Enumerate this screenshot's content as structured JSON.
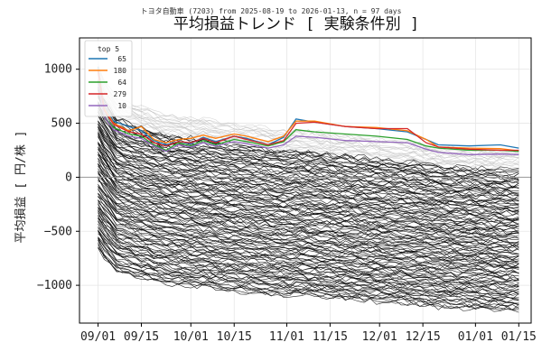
{
  "chart_data": {
    "type": "line",
    "subtitle": "トヨタ自動車 (7203) from 2025-08-19 to 2026-01-13, n = 97 days",
    "title": "平均損益トレンド [ 実験条件別 ]",
    "xlabel": "",
    "ylabel": "平均損益 [ 円/株 ]",
    "x_tick_labels": [
      "09/01",
      "09/15",
      "10/01",
      "10/15",
      "11/01",
      "11/15",
      "12/01",
      "12/15",
      "01/01",
      "01/15"
    ],
    "x_tick_days": [
      0,
      14,
      30,
      44,
      61,
      75,
      91,
      105,
      122,
      136
    ],
    "xlim_days": [
      -6,
      140
    ],
    "y_ticks": [
      1000,
      500,
      0,
      -500,
      -1000
    ],
    "ylim": [
      -1350,
      1290
    ],
    "zero_line": 0,
    "grid": true,
    "legend": {
      "title": "top 5",
      "placement": "top-left",
      "entries": [
        {
          "label": "65",
          "color": "#1f77b4"
        },
        {
          "label": "180",
          "color": "#ff7f0e"
        },
        {
          "label": "64",
          "color": "#2ca02c"
        },
        {
          "label": "279",
          "color": "#d62728"
        },
        {
          "label": "10",
          "color": "#9467bd"
        }
      ]
    },
    "top_series": [
      {
        "name": "65",
        "color": "#1f77b4",
        "points": [
          [
            0,
            1020
          ],
          [
            2,
            650
          ],
          [
            5,
            520
          ],
          [
            10,
            470
          ],
          [
            14,
            430
          ],
          [
            18,
            340
          ],
          [
            22,
            300
          ],
          [
            26,
            330
          ],
          [
            30,
            310
          ],
          [
            34,
            370
          ],
          [
            38,
            330
          ],
          [
            44,
            380
          ],
          [
            48,
            360
          ],
          [
            55,
            300
          ],
          [
            60,
            370
          ],
          [
            64,
            540
          ],
          [
            70,
            510
          ],
          [
            80,
            470
          ],
          [
            90,
            450
          ],
          [
            100,
            420
          ],
          [
            106,
            350
          ],
          [
            110,
            300
          ],
          [
            120,
            290
          ],
          [
            130,
            300
          ],
          [
            136,
            270
          ]
        ]
      },
      {
        "name": "180",
        "color": "#ff7f0e",
        "points": [
          [
            0,
            1000
          ],
          [
            2,
            640
          ],
          [
            5,
            500
          ],
          [
            10,
            430
          ],
          [
            14,
            470
          ],
          [
            18,
            350
          ],
          [
            22,
            320
          ],
          [
            26,
            350
          ],
          [
            30,
            360
          ],
          [
            34,
            390
          ],
          [
            38,
            360
          ],
          [
            44,
            400
          ],
          [
            48,
            380
          ],
          [
            55,
            330
          ],
          [
            60,
            380
          ],
          [
            64,
            520
          ],
          [
            70,
            520
          ],
          [
            80,
            470
          ],
          [
            90,
            460
          ],
          [
            100,
            430
          ],
          [
            106,
            350
          ],
          [
            110,
            280
          ],
          [
            120,
            270
          ],
          [
            130,
            265
          ],
          [
            136,
            245
          ]
        ]
      },
      {
        "name": "64",
        "color": "#2ca02c",
        "points": [
          [
            0,
            900
          ],
          [
            2,
            560
          ],
          [
            5,
            460
          ],
          [
            10,
            400
          ],
          [
            14,
            380
          ],
          [
            18,
            300
          ],
          [
            22,
            250
          ],
          [
            26,
            320
          ],
          [
            30,
            290
          ],
          [
            34,
            340
          ],
          [
            38,
            300
          ],
          [
            44,
            350
          ],
          [
            48,
            330
          ],
          [
            55,
            290
          ],
          [
            60,
            330
          ],
          [
            64,
            440
          ],
          [
            70,
            420
          ],
          [
            80,
            400
          ],
          [
            90,
            380
          ],
          [
            100,
            350
          ],
          [
            106,
            290
          ],
          [
            110,
            270
          ],
          [
            120,
            250
          ],
          [
            130,
            250
          ],
          [
            136,
            240
          ]
        ]
      },
      {
        "name": "279",
        "color": "#d62728",
        "points": [
          [
            0,
            980
          ],
          [
            2,
            620
          ],
          [
            5,
            490
          ],
          [
            10,
            420
          ],
          [
            14,
            400
          ],
          [
            18,
            320
          ],
          [
            22,
            290
          ],
          [
            26,
            330
          ],
          [
            30,
            320
          ],
          [
            34,
            360
          ],
          [
            38,
            320
          ],
          [
            44,
            380
          ],
          [
            48,
            350
          ],
          [
            55,
            300
          ],
          [
            60,
            340
          ],
          [
            64,
            500
          ],
          [
            70,
            510
          ],
          [
            80,
            470
          ],
          [
            90,
            450
          ],
          [
            100,
            450
          ],
          [
            106,
            320
          ],
          [
            110,
            280
          ],
          [
            120,
            260
          ],
          [
            130,
            250
          ],
          [
            136,
            250
          ]
        ]
      },
      {
        "name": "10",
        "color": "#9467bd",
        "points": [
          [
            0,
            880
          ],
          [
            2,
            560
          ],
          [
            5,
            440
          ],
          [
            10,
            380
          ],
          [
            14,
            360
          ],
          [
            18,
            290
          ],
          [
            22,
            240
          ],
          [
            26,
            300
          ],
          [
            30,
            280
          ],
          [
            34,
            320
          ],
          [
            38,
            290
          ],
          [
            44,
            330
          ],
          [
            48,
            310
          ],
          [
            55,
            270
          ],
          [
            60,
            300
          ],
          [
            64,
            380
          ],
          [
            70,
            370
          ],
          [
            80,
            340
          ],
          [
            90,
            330
          ],
          [
            100,
            320
          ],
          [
            106,
            260
          ],
          [
            110,
            230
          ],
          [
            120,
            210
          ],
          [
            130,
            215
          ],
          [
            136,
            210
          ]
        ]
      }
    ],
    "background_series": {
      "count": 150,
      "color": "#000000",
      "muted_color": "#bbbbbb",
      "start_range": [
        1040,
        -660
      ],
      "end_range": [
        240,
        -1230
      ],
      "notes": "many overlapping condition lines; lower-ranked lines drawn black, upper ones light gray"
    }
  }
}
